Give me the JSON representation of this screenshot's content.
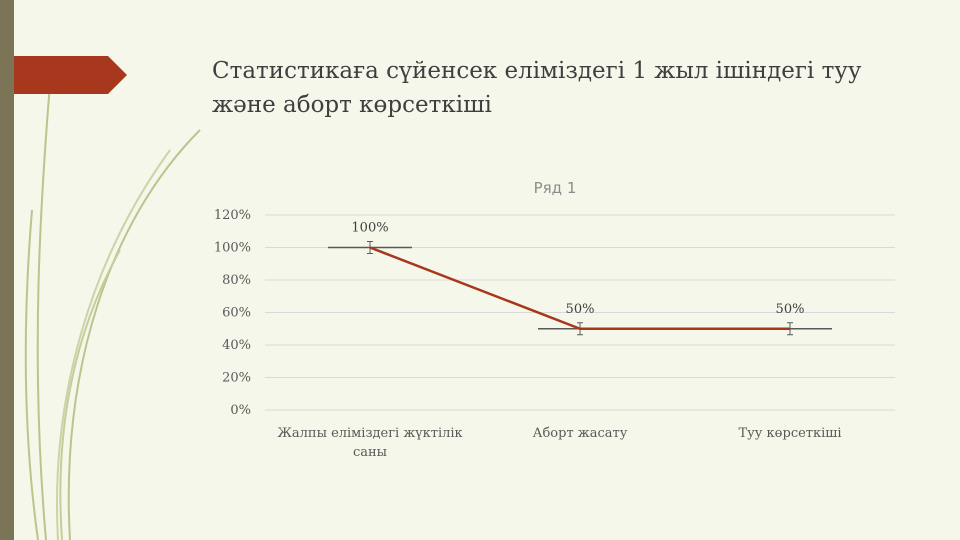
{
  "slide": {
    "title_line1": "Статистикаға сүйенсек еліміздегі 1 жыл ішіндегі туу",
    "title_line2": "және аборт көрсеткіші",
    "accent_color": "#a8381d",
    "bar_color": "#7b7457"
  },
  "chart_data": {
    "type": "line",
    "title": "Ряд 1",
    "categories": [
      [
        "Жалпы еліміздегі жүктілік",
        "саны"
      ],
      [
        "Аборт жасату"
      ],
      [
        "Туу көрсеткіші"
      ]
    ],
    "series": [
      {
        "name": "Ряд 1",
        "values": [
          1.0,
          0.5,
          0.5
        ],
        "color": "#a8381d"
      }
    ],
    "data_labels": [
      "100%",
      "50%",
      "50%"
    ],
    "y_ticks": [
      {
        "value": 0,
        "label": "0%"
      },
      {
        "value": 0.2,
        "label": "20%"
      },
      {
        "value": 0.4,
        "label": "40%"
      },
      {
        "value": 0.6,
        "label": "60%"
      },
      {
        "value": 0.8,
        "label": "80%"
      },
      {
        "value": 1.0,
        "label": "100%"
      },
      {
        "value": 1.2,
        "label": "120%"
      }
    ],
    "ylim": [
      0,
      1.2
    ],
    "grid": true,
    "error_bars": true,
    "legend": "none"
  }
}
